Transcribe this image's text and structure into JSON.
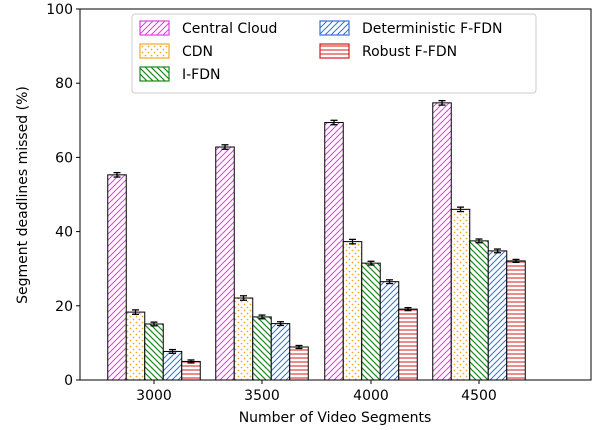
{
  "chart_data": {
    "type": "bar",
    "title": "",
    "xlabel": "Number of Video Segments",
    "ylabel": "Segment deadlines missed (%)",
    "categories": [
      "3000",
      "3500",
      "4000",
      "4500"
    ],
    "ylim": [
      0,
      100
    ],
    "yticks": [
      0,
      20,
      40,
      60,
      80,
      100
    ],
    "grid": false,
    "legend_position": "top-center",
    "series": [
      {
        "name": "Central Cloud",
        "values": [
          55.3,
          62.8,
          69.4,
          74.7
        ],
        "errors": [
          0.6,
          0.6,
          0.6,
          0.6
        ],
        "color": "#e040e0",
        "pattern": "diag-right"
      },
      {
        "name": "CDN",
        "values": [
          18.3,
          22.1,
          37.3,
          46.0
        ],
        "errors": [
          0.6,
          0.6,
          0.6,
          0.6
        ],
        "color": "#f5a623",
        "pattern": "dots"
      },
      {
        "name": "I-FDN",
        "values": [
          15.1,
          17.0,
          31.5,
          37.5
        ],
        "errors": [
          0.5,
          0.5,
          0.5,
          0.5
        ],
        "color": "#1a8a1a",
        "pattern": "diag-left"
      },
      {
        "name": "Deterministic F-FDN",
        "values": [
          7.7,
          15.2,
          26.5,
          34.8
        ],
        "errors": [
          0.5,
          0.5,
          0.5,
          0.5
        ],
        "color": "#3a6fd8",
        "pattern": "diag-right"
      },
      {
        "name": "Robust F-FDN",
        "values": [
          5.0,
          8.9,
          19.1,
          32.1
        ],
        "errors": [
          0.4,
          0.4,
          0.4,
          0.4
        ],
        "color": "#d81b1b",
        "pattern": "horizontal"
      }
    ]
  }
}
